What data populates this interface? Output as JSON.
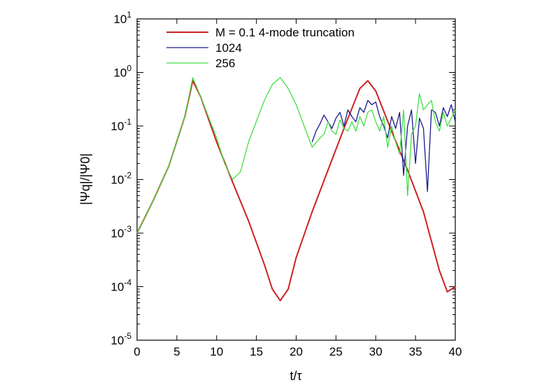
{
  "chart_data": {
    "type": "line",
    "xlabel": "t/τ",
    "ylabel": "|Ψq|/|Ψ0|",
    "xlim": [
      0,
      40
    ],
    "ylim": [
      1e-05,
      10
    ],
    "yscale": "log",
    "grid": false,
    "legend_position": "top-center",
    "x_ticks": [
      0,
      5,
      10,
      15,
      20,
      25,
      30,
      35,
      40
    ],
    "x_tick_labels": [
      "0",
      "5",
      "10",
      "15",
      "20",
      "25",
      "30",
      "35",
      "40"
    ],
    "y_ticks": [
      1e-05,
      0.0001,
      0.001,
      0.01,
      0.1,
      1,
      10
    ],
    "y_tick_labels": [
      {
        "base": "10",
        "exp": "-5"
      },
      {
        "base": "10",
        "exp": "-4"
      },
      {
        "base": "10",
        "exp": "-3"
      },
      {
        "base": "10",
        "exp": "-2"
      },
      {
        "base": "10",
        "exp": "-1"
      },
      {
        "base": "10",
        "exp": "0"
      },
      {
        "base": "10",
        "exp": "1"
      }
    ],
    "series": [
      {
        "name": "M = 0.1 4-mode truncation",
        "color": "#cc2222",
        "x": [
          0,
          2,
          4,
          6,
          7,
          8,
          10,
          12,
          14,
          16,
          17,
          18,
          19,
          20,
          22,
          24,
          26,
          28,
          29,
          30,
          32,
          34,
          36,
          38,
          39,
          40
        ],
        "y": [
          0.001,
          0.004,
          0.018,
          0.15,
          0.7,
          0.35,
          0.05,
          0.009,
          0.0017,
          0.00026,
          9e-05,
          5.5e-05,
          9e-05,
          0.00035,
          0.0025,
          0.015,
          0.09,
          0.5,
          0.7,
          0.45,
          0.08,
          0.015,
          0.0025,
          0.0002,
          8e-05,
          0.0001
        ]
      },
      {
        "name": "1024",
        "color": "#1a1a8c",
        "x": [
          22,
          22.5,
          23,
          23.5,
          24,
          24.5,
          25,
          25.5,
          26,
          26.5,
          27,
          27.5,
          28,
          28.5,
          29,
          29.5,
          30,
          30.5,
          31,
          31.5,
          32,
          32.5,
          33,
          33.5,
          34,
          34.5,
          35,
          35.5,
          36,
          36.5,
          37,
          37.5,
          38,
          38.5,
          39,
          39.5,
          40
        ],
        "y": [
          0.05,
          0.08,
          0.11,
          0.16,
          0.12,
          0.09,
          0.14,
          0.18,
          0.1,
          0.2,
          0.15,
          0.12,
          0.22,
          0.18,
          0.3,
          0.25,
          0.28,
          0.15,
          0.1,
          0.06,
          0.15,
          0.09,
          0.18,
          0.012,
          0.1,
          0.2,
          0.02,
          0.14,
          0.09,
          0.006,
          0.2,
          0.18,
          0.1,
          0.22,
          0.15,
          0.25,
          0.12
        ]
      },
      {
        "name": "256",
        "color": "#44dd44",
        "x": [
          0,
          2,
          4,
          6,
          7,
          8,
          10,
          11,
          12,
          13,
          14,
          16,
          17,
          18,
          19,
          20,
          21,
          22,
          23,
          23.5,
          24,
          24.5,
          25,
          25.5,
          26,
          26.5,
          27,
          27.5,
          28,
          28.5,
          29,
          29.5,
          30,
          30.5,
          31,
          31.5,
          32,
          32.5,
          33,
          33.5,
          34,
          34.5,
          35,
          35.5,
          36,
          36.5,
          37,
          37.5,
          38,
          38.5,
          39,
          39.5,
          40
        ],
        "y": [
          0.001,
          0.004,
          0.018,
          0.15,
          0.8,
          0.35,
          0.06,
          0.02,
          0.01,
          0.014,
          0.05,
          0.3,
          0.6,
          0.8,
          0.5,
          0.25,
          0.1,
          0.04,
          0.06,
          0.07,
          0.12,
          0.08,
          0.07,
          0.13,
          0.09,
          0.08,
          0.12,
          0.08,
          0.15,
          0.1,
          0.18,
          0.2,
          0.12,
          0.08,
          0.15,
          0.04,
          0.1,
          0.05,
          0.03,
          0.2,
          0.005,
          0.07,
          0.1,
          0.4,
          0.2,
          0.25,
          0.3,
          0.12,
          0.08,
          0.18,
          0.1,
          0.14,
          0.2
        ]
      }
    ]
  }
}
